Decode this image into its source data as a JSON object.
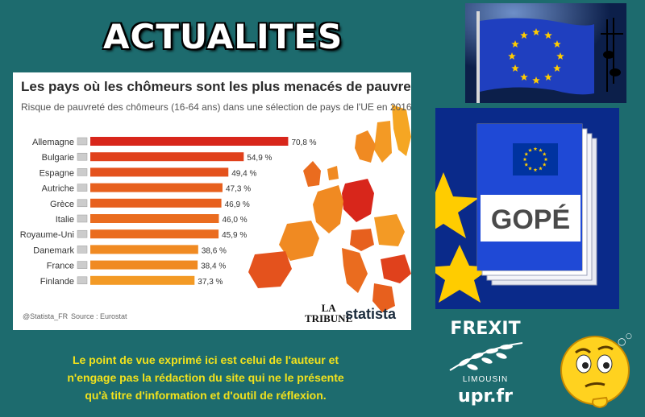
{
  "header": {
    "title": "ACTUALITES"
  },
  "chart_data": {
    "type": "bar",
    "orientation": "horizontal",
    "title": "Les pays où les chômeurs sont les plus menacés de pauvreté",
    "subtitle": "Risque de pauvreté des chômeurs (16-64 ans) dans une sélection de pays de l'UE en 2016",
    "categories": [
      "Allemagne",
      "Bulgarie",
      "Espagne",
      "Autriche",
      "Grèce",
      "Italie",
      "Royaume-Uni",
      "Danemark",
      "France",
      "Finlande"
    ],
    "values": [
      70.8,
      54.9,
      49.4,
      47.3,
      46.9,
      46.0,
      45.9,
      38.6,
      38.4,
      37.3
    ],
    "value_labels": [
      "70,8 %",
      "54,9 %",
      "49,4 %",
      "47,3 %",
      "46,9 %",
      "46,0 %",
      "45,9 %",
      "38,6 %",
      "38,4 %",
      "37,3 %"
    ],
    "unit": "%",
    "xlim": [
      0,
      75
    ],
    "colors": [
      "#d8261b",
      "#e0411c",
      "#e4521d",
      "#e7601e",
      "#e7601e",
      "#ea6c1f",
      "#ea6c1f",
      "#f08a22",
      "#f08a22",
      "#f39a25"
    ],
    "footer_handle": "@Statista_FR",
    "source": "Source : Eurostat"
  },
  "logos": {
    "latribune_line1": "LA",
    "latribune_line2": "TRIBUNE",
    "statista": "statista"
  },
  "gope_box": {
    "label": "GOPÉ"
  },
  "disclaimer": {
    "line1": "Le point de vue exprimé ici est celui de l'auteur et",
    "line2": "n'engage pas la rédaction du site qui ne le présente",
    "line3": "qu'à titre d'information et d'outil de réflexion."
  },
  "frexit": {
    "title": "FREXIT",
    "region": "LIMOUSIN",
    "site": "upr.fr"
  },
  "colors": {
    "background": "#1d6b6e",
    "disclaimer": "#f2e21c",
    "eu_blue": "#0033a0",
    "eu_gold": "#ffcc00"
  }
}
